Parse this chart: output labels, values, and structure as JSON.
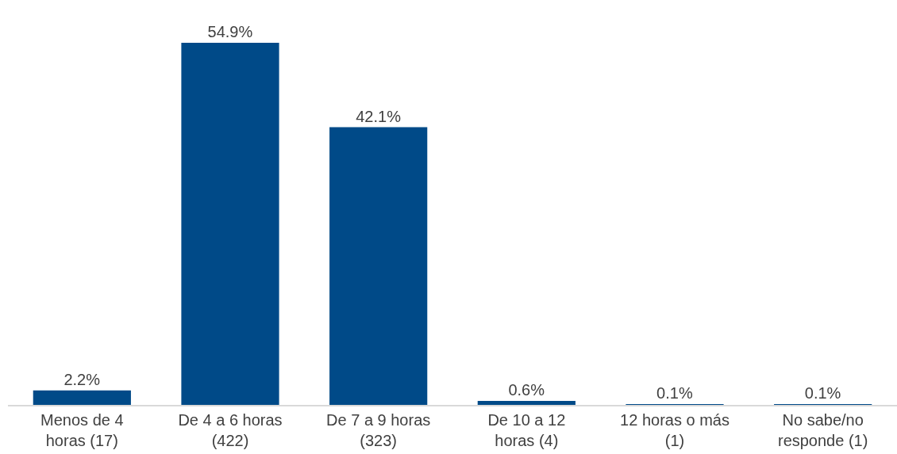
{
  "chart_data": {
    "type": "bar",
    "categories": [
      "Menos de 4\nhoras (17)",
      "De 4 a 6 horas\n(422)",
      "De 7 a 9 horas\n(323)",
      "De 10 a 12\nhoras (4)",
      "12 horas o más\n(1)",
      "No sabe/no\nresponde (1)"
    ],
    "values": [
      2.2,
      54.9,
      42.1,
      0.6,
      0.1,
      0.1
    ],
    "value_labels": [
      "2.2%",
      "54.9%",
      "42.1%",
      "0.6%",
      "0.1%",
      "0.1%"
    ],
    "color": "#004a88"
  }
}
